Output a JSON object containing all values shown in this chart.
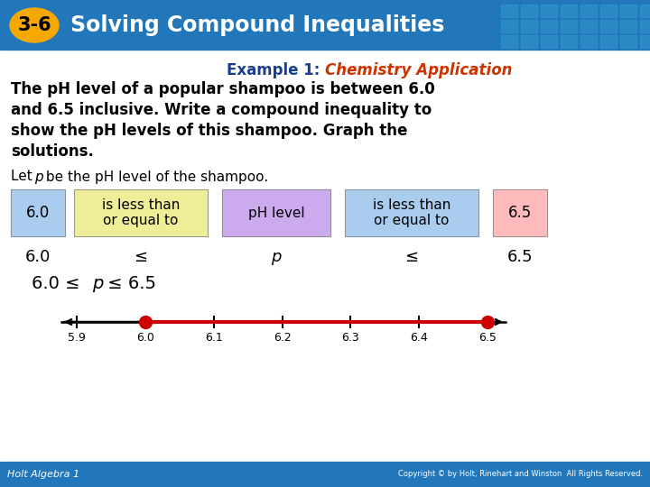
{
  "title_badge": "3-6",
  "title_badge_bg": "#F5A800",
  "title_text": "Solving Compound Inequalities",
  "header_bg": "#2277BB",
  "header_text_color": "#FFFFFF",
  "body_bg": "#FFFFFF",
  "example_label": "Example 1: ",
  "example_label_color": "#1A3E8C",
  "example_italic": "Chemistry Application",
  "example_italic_color": "#CC3300",
  "body_text_line1": "The pH level of a popular shampoo is between 6.0",
  "body_text_line2": "and 6.5 inclusive. Write a compound inequality to",
  "body_text_line3": "show the pH levels of this shampoo. Graph the",
  "body_text_line4": "solutions.",
  "body_text_color": "#000000",
  "box1_text": "6.0",
  "box1_bg": "#AACCEE",
  "box2_line1": "is less than",
  "box2_line2": "or equal to",
  "box2_bg": "#EEEE99",
  "box3_text": "pH level",
  "box3_bg": "#CCAAEE",
  "box4_line1": "is less than",
  "box4_line2": "or equal to",
  "box4_bg": "#AACCEE",
  "box5_text": "6.5",
  "box5_bg": "#FFBBBB",
  "footer_bg": "#2277BB",
  "footer_left": "Holt Algebra 1",
  "footer_right": "Copyright © by Holt, Rinehart and Winston  All Rights Reserved.",
  "footer_text_color": "#FFFFFF",
  "number_line_ticks": [
    5.9,
    6.0,
    6.1,
    6.2,
    6.3,
    6.4,
    6.5
  ],
  "number_line_color": "#CC0000",
  "number_line_line_color": "#000000"
}
